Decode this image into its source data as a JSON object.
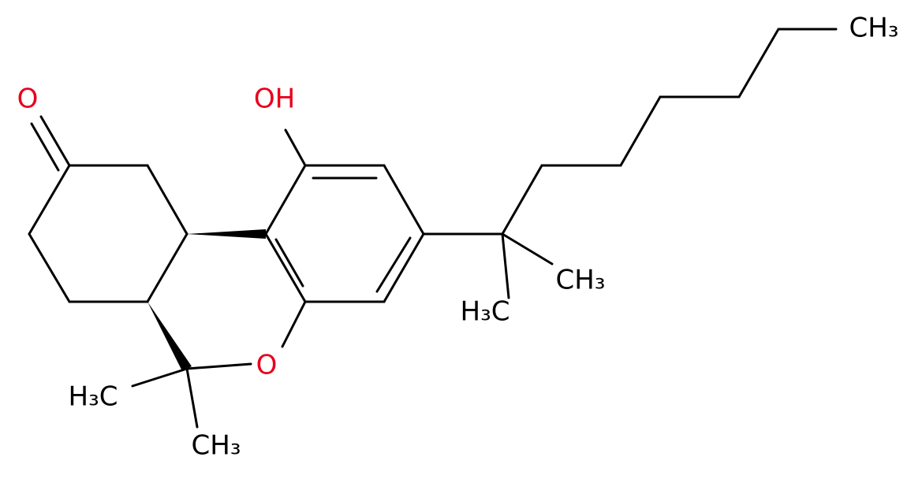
{
  "labels": {
    "ketone_oxygen": "O",
    "hydroxyl": "OH",
    "ring_oxygen": "O",
    "methyl_c6_left": "H₃C",
    "methyl_c6_down": "CH₃",
    "methyl_quat_right": "CH₃",
    "methyl_quat_down": "H₃C",
    "chain_end": "CH₃"
  }
}
